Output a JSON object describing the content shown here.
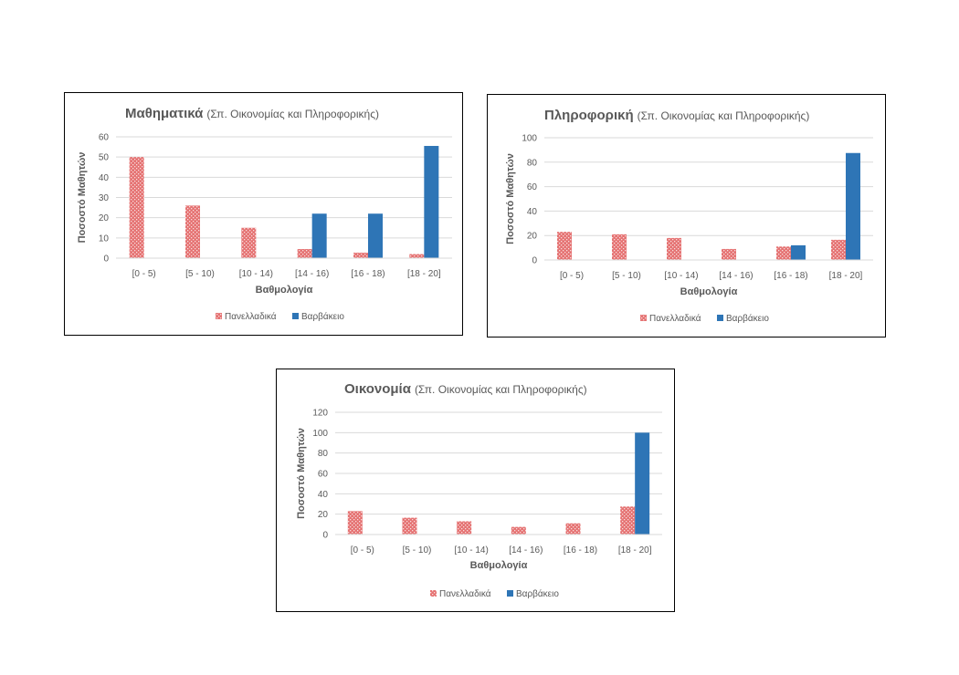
{
  "legend": [
    "Πανελλαδικά",
    "Βαρβάκειο"
  ],
  "colors": {
    "panelladika": "#e57373",
    "varvakeio": "#2e75b6",
    "grid": "#d9d9d9"
  },
  "chart_data": [
    {
      "type": "bar",
      "title": "Μαθηματικά",
      "subtitle": "(Σπ. Οικονομίας και Πληροφορικής)",
      "xlabel": "Βαθμολογία",
      "ylabel": "Ποσοστό Μαθητών",
      "categories": [
        "[0 - 5)",
        "[5 - 10)",
        "[10 - 14)",
        "[14 - 16)",
        "[16 - 18)",
        "[18 - 20]"
      ],
      "ylim": [
        0,
        60
      ],
      "yticks": [
        0,
        10,
        20,
        30,
        40,
        50,
        60
      ],
      "grid": true,
      "legend_position": "bottom",
      "series": [
        {
          "name": "Πανελλαδικά",
          "values": [
            50,
            26,
            15,
            4.5,
            2.7,
            2
          ]
        },
        {
          "name": "Βαρβάκειο",
          "values": [
            0,
            0,
            0,
            22,
            22,
            55.5
          ]
        }
      ]
    },
    {
      "type": "bar",
      "title": "Πληροφορική",
      "subtitle": "(Σπ. Οικονομίας και Πληροφορικής)",
      "xlabel": "Βαθμολογία",
      "ylabel": "Ποσοστό Μαθητών",
      "categories": [
        "[0 - 5)",
        "[5 - 10)",
        "[10 - 14)",
        "[14 - 16)",
        "[16 - 18)",
        "[18 - 20]"
      ],
      "ylim": [
        0,
        100
      ],
      "yticks": [
        0,
        20,
        40,
        60,
        80,
        100
      ],
      "grid": true,
      "legend_position": "bottom",
      "series": [
        {
          "name": "Πανελλαδικά",
          "values": [
            23,
            21,
            18,
            9,
            11,
            16.5
          ]
        },
        {
          "name": "Βαρβάκειο",
          "values": [
            0,
            0,
            0,
            0,
            12,
            87.5
          ]
        }
      ]
    },
    {
      "type": "bar",
      "title": "Οικονομία",
      "subtitle": "(Σπ. Οικονομίας και Πληροφορικής)",
      "xlabel": "Βαθμολογία",
      "ylabel": "Ποσοστό Μαθητών",
      "categories": [
        "[0 - 5)",
        "[5 - 10)",
        "[10 - 14)",
        "[14 - 16)",
        "[16 - 18)",
        "[18 - 20]"
      ],
      "ylim": [
        0,
        120
      ],
      "yticks": [
        0,
        20,
        40,
        60,
        80,
        100,
        120
      ],
      "grid": true,
      "legend_position": "bottom",
      "series": [
        {
          "name": "Πανελλαδικά",
          "values": [
            23,
            16.5,
            13,
            7.5,
            11,
            27.5
          ]
        },
        {
          "name": "Βαρβάκειο",
          "values": [
            0,
            0,
            0,
            0,
            0,
            100
          ]
        }
      ]
    }
  ]
}
